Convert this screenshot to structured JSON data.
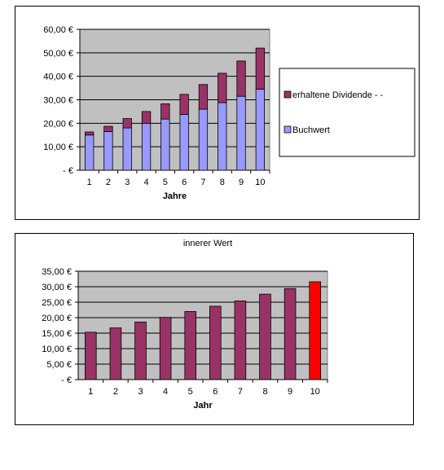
{
  "chart_data": [
    {
      "type": "bar",
      "stacked": true,
      "title": "",
      "xlabel": "Jahre",
      "ylabel": "",
      "categories": [
        "1",
        "2",
        "3",
        "4",
        "5",
        "6",
        "7",
        "8",
        "9",
        "10"
      ],
      "series": [
        {
          "name": "Buchwert",
          "color": "#9999ff",
          "values": [
            15.0,
            16.5,
            18.0,
            20.0,
            21.8,
            23.8,
            26.0,
            28.8,
            31.5,
            34.5
          ]
        },
        {
          "name": "erhaltene Dividende - -",
          "color": "#993366",
          "values": [
            1.3,
            2.2,
            4.0,
            5.0,
            6.5,
            8.5,
            10.5,
            12.5,
            15.0,
            17.5
          ]
        }
      ],
      "ylim": [
        0,
        60
      ],
      "yticks": [
        "-   €",
        "10,00 €",
        "20,00 €",
        "30,00 €",
        "40,00 €",
        "50,00 €",
        "60,00 €"
      ],
      "grid": true,
      "plot_background": "#c0c0c0",
      "legend_position": "right"
    },
    {
      "type": "bar",
      "title": "innerer Wert",
      "xlabel": "Jahr",
      "ylabel": "",
      "categories": [
        "1",
        "2",
        "3",
        "4",
        "5",
        "6",
        "7",
        "8",
        "9",
        "10"
      ],
      "series": [
        {
          "color": "#993366",
          "values": [
            15.3,
            16.7,
            18.6,
            20.1,
            22.0,
            23.7,
            25.4,
            27.6,
            29.4,
            31.6
          ]
        }
      ],
      "highlight": {
        "index": 9,
        "color": "#ff0000"
      },
      "ylim": [
        0,
        35
      ],
      "yticks": [
        "-   €",
        "5,00 €",
        "10,00 €",
        "15,00 €",
        "20,00 €",
        "25,00 €",
        "30,00 €",
        "35,00 €"
      ],
      "grid": true,
      "plot_background": "#c0c0c0",
      "legend_position": "none"
    }
  ]
}
